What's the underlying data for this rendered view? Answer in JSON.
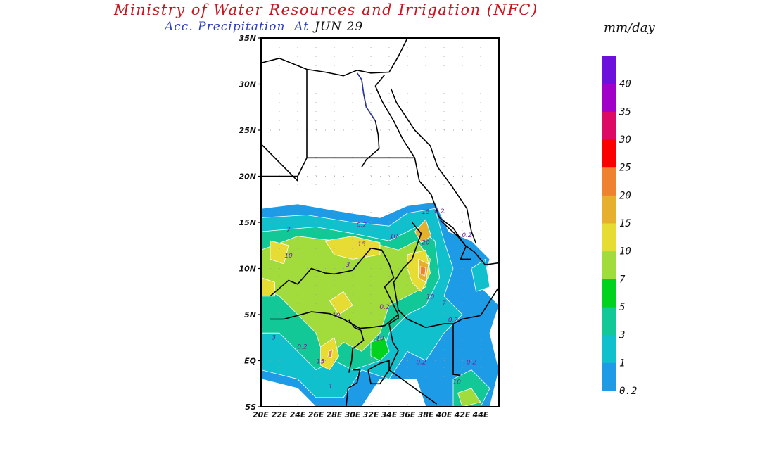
{
  "header": {
    "title": "Ministry of Water Resources and Irrigation (NFC)",
    "subtitle_prefix": "Acc. Precipitation",
    "subtitle_at": "At",
    "date": "JUN 29",
    "units": "mm/day"
  },
  "map": {
    "variable": "Accumulated precipitation",
    "lon_range": [
      20,
      46
    ],
    "lat_range": [
      -5,
      35
    ],
    "lat_ticks": [
      "35N",
      "30N",
      "25N",
      "20N",
      "15N",
      "10N",
      "5N",
      "EQ",
      "5S"
    ],
    "lon_ticks": [
      "20E",
      "22E",
      "24E",
      "26E",
      "28E",
      "30E",
      "32E",
      "34E",
      "36E",
      "38E",
      "40E",
      "42E",
      "44E"
    ],
    "contour_labels": [
      {
        "text": "0.2",
        "lon": 31,
        "lat": 14.5
      },
      {
        "text": "15",
        "lon": 38,
        "lat": 15.9
      },
      {
        "text": "0.2",
        "lon": 39.5,
        "lat": 16
      },
      {
        "text": "10",
        "lon": 34.5,
        "lat": 13.3
      },
      {
        "text": "20",
        "lon": 38,
        "lat": 12.6
      },
      {
        "text": "15",
        "lon": 31,
        "lat": 12.4
      },
      {
        "text": "7",
        "lon": 23,
        "lat": 14
      },
      {
        "text": "10",
        "lon": 23,
        "lat": 11.2
      },
      {
        "text": "3",
        "lon": 29.5,
        "lat": 10.2
      },
      {
        "text": "0.2",
        "lon": 42.5,
        "lat": 13.4
      },
      {
        "text": "10",
        "lon": 38.5,
        "lat": 6.7
      },
      {
        "text": "7",
        "lon": 40,
        "lat": 6
      },
      {
        "text": "0.2",
        "lon": 33.5,
        "lat": 5.6
      },
      {
        "text": "10",
        "lon": 28.2,
        "lat": 4.7
      },
      {
        "text": "0.2",
        "lon": 41,
        "lat": 4.2
      },
      {
        "text": "10",
        "lon": 33,
        "lat": 2.2
      },
      {
        "text": "3",
        "lon": 21.4,
        "lat": 2.3
      },
      {
        "text": "0.2",
        "lon": 24.5,
        "lat": 1.3
      },
      {
        "text": "15",
        "lon": 26.5,
        "lat": -0.3
      },
      {
        "text": "0.2",
        "lon": 37.5,
        "lat": -0.4
      },
      {
        "text": "0.2",
        "lon": 43,
        "lat": -0.4
      },
      {
        "text": "10",
        "lon": 41.4,
        "lat": -2.5
      },
      {
        "text": "3",
        "lon": 27.5,
        "lat": -3
      }
    ]
  },
  "legend": {
    "units": "mm/day",
    "labels": [
      "0.2",
      "1",
      "3",
      "5",
      "7",
      "10",
      "15",
      "20",
      "25",
      "30",
      "35",
      "40"
    ],
    "colors": [
      "#1e9be6",
      "#10c0cc",
      "#12c896",
      "#00d21e",
      "#a2dc3c",
      "#e6dc34",
      "#e6b02e",
      "#ee8230",
      "#fa0000",
      "#dc0a64",
      "#a000c8",
      "#6e10dc"
    ]
  }
}
